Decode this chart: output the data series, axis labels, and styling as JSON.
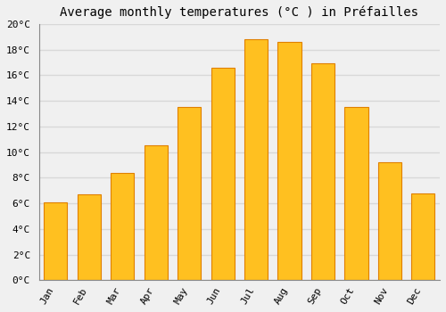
{
  "title": "Average monthly temperatures (°C ) in Préfailles",
  "months": [
    "Jan",
    "Feb",
    "Mar",
    "Apr",
    "May",
    "Jun",
    "Jul",
    "Aug",
    "Sep",
    "Oct",
    "Nov",
    "Dec"
  ],
  "values": [
    6.1,
    6.7,
    8.4,
    10.5,
    13.5,
    16.6,
    18.8,
    18.6,
    16.9,
    13.5,
    9.2,
    6.8
  ],
  "bar_color": "#FFC020",
  "bar_edge_color": "#E08000",
  "ylim": [
    0,
    20
  ],
  "yticks": [
    0,
    2,
    4,
    6,
    8,
    10,
    12,
    14,
    16,
    18,
    20
  ],
  "ytick_labels": [
    "0°C",
    "2°C",
    "4°C",
    "6°C",
    "8°C",
    "10°C",
    "12°C",
    "14°C",
    "16°C",
    "18°C",
    "20°C"
  ],
  "background_color": "#f0f0f0",
  "grid_color": "#d8d8d8",
  "title_fontsize": 10,
  "tick_fontsize": 8
}
